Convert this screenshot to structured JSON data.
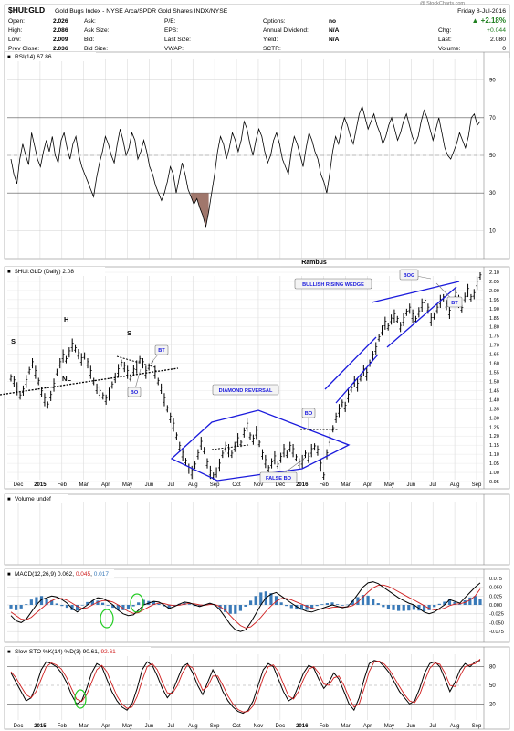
{
  "header": {
    "symbol": "$HUI:GLD",
    "description": "Gold Bugs Index - NYSE Arca/SPDR Gold Shares INDX/NYSE",
    "date": "Friday  8-Jul-2016",
    "change_pct": "▲ +2.18%",
    "chg_label": "Chg:",
    "chg_value": "+0.044",
    "last_label": "Last:",
    "last_value": "2.080",
    "volume_label": "Volume:",
    "volume_value": "0",
    "watermark": "@ StockCharts.com",
    "quote": [
      [
        "Open:",
        "2.026",
        "Ask:",
        "",
        "P/E:",
        "",
        "Options:",
        "no"
      ],
      [
        "High:",
        "2.086",
        "Ask Size:",
        "",
        "EPS:",
        "",
        "Annual Dividend:",
        "N/A"
      ],
      [
        "Low:",
        "2.009",
        "Bid:",
        "",
        "Last Size:",
        "",
        "Yield:",
        "N/A"
      ],
      [
        "Prev Close:",
        "2.036",
        "Bid Size:",
        "",
        "VWAP:",
        "",
        "SCTR:",
        ""
      ]
    ]
  },
  "colors": {
    "price": "#000000",
    "annotation": "#1a1adc",
    "rsi_fill": "#a0776c",
    "macd_signal": "#d02020",
    "macd_hist": "#3a7ab8",
    "sto_d": "#d02020",
    "green": "#22cc22",
    "grid": "#c8c8c8"
  },
  "chart_data": [
    {
      "type": "line",
      "title": "RSI(14) 67.86",
      "x_labels": [
        "Dec",
        "2015",
        "Feb",
        "Mar",
        "Apr",
        "May",
        "Jun",
        "Jul",
        "Aug",
        "Sep",
        "Oct",
        "Nov",
        "Dec",
        "2016",
        "Feb",
        "Mar",
        "Apr",
        "May",
        "Jun",
        "Jul",
        "Aug",
        "Sep"
      ],
      "y_ticks": [
        10,
        30,
        50,
        70,
        90
      ],
      "ylim": [
        0,
        100
      ],
      "reference_lines": [
        30,
        70
      ],
      "values": [
        48,
        40,
        35,
        48,
        56,
        50,
        45,
        62,
        55,
        48,
        44,
        52,
        58,
        52,
        60,
        50,
        46,
        58,
        62,
        54,
        48,
        56,
        60,
        50,
        44,
        40,
        36,
        32,
        28,
        38,
        46,
        52,
        60,
        56,
        50,
        46,
        56,
        64,
        58,
        50,
        54,
        62,
        58,
        48,
        52,
        58,
        52,
        44,
        40,
        34,
        30,
        26,
        30,
        36,
        44,
        40,
        30,
        38,
        46,
        40,
        32,
        28,
        24,
        27,
        22,
        18,
        12,
        20,
        30,
        40,
        52,
        60,
        56,
        48,
        54,
        62,
        58,
        52,
        58,
        68,
        64,
        56,
        50,
        58,
        64,
        60,
        52,
        46,
        50,
        58,
        62,
        56,
        48,
        44,
        40,
        52,
        60,
        56,
        50,
        44,
        54,
        62,
        58,
        52,
        48,
        40,
        36,
        30,
        40,
        52,
        60,
        56,
        64,
        70,
        66,
        60,
        56,
        64,
        72,
        76,
        70,
        64,
        68,
        72,
        66,
        62,
        56,
        60,
        66,
        70,
        64,
        58,
        62,
        68,
        72,
        66,
        60,
        56,
        60,
        68,
        74,
        70,
        64,
        58,
        64,
        70,
        62,
        54,
        50,
        48,
        52,
        56,
        62,
        58,
        54,
        60,
        70,
        72,
        66,
        68
      ]
    },
    {
      "type": "line",
      "title": "$HUI:GLD (Daily) 2.08",
      "credit": "Rambus",
      "x_labels": [
        "Dec",
        "2015",
        "Feb",
        "Mar",
        "Apr",
        "May",
        "Jun",
        "Jul",
        "Aug",
        "Sep",
        "Oct",
        "Nov",
        "Dec",
        "2016",
        "Feb",
        "Mar",
        "Apr",
        "May",
        "Jun",
        "Jul",
        "Aug",
        "Sep"
      ],
      "y_ticks": [
        "0.95",
        "1.00",
        "1.05",
        "1.10",
        "1.15",
        "1.20",
        "1.25",
        "1.30",
        "1.35",
        "1.40",
        "1.45",
        "1.50",
        "1.55",
        "1.60",
        "1.65",
        "1.70",
        "1.75",
        "1.80",
        "1.85",
        "1.90",
        "1.95",
        "2.00",
        "2.05",
        "2.10"
      ],
      "ylim": [
        0.95,
        2.1
      ],
      "values": [
        1.52,
        1.5,
        1.46,
        1.42,
        1.45,
        1.5,
        1.56,
        1.6,
        1.55,
        1.5,
        1.44,
        1.4,
        1.37,
        1.42,
        1.48,
        1.55,
        1.6,
        1.64,
        1.62,
        1.66,
        1.7,
        1.68,
        1.65,
        1.62,
        1.64,
        1.6,
        1.55,
        1.5,
        1.46,
        1.44,
        1.42,
        1.4,
        1.43,
        1.48,
        1.52,
        1.56,
        1.6,
        1.58,
        1.55,
        1.52,
        1.56,
        1.58,
        1.62,
        1.6,
        1.55,
        1.58,
        1.6,
        1.55,
        1.5,
        1.46,
        1.4,
        1.35,
        1.3,
        1.26,
        1.2,
        1.14,
        1.1,
        1.06,
        1.02,
        1.0,
        1.04,
        1.1,
        1.16,
        1.12,
        1.05,
        1.0,
        0.98,
        1.0,
        1.04,
        1.1,
        1.14,
        1.12,
        1.1,
        1.14,
        1.18,
        1.16,
        1.22,
        1.26,
        1.2,
        1.18,
        1.22,
        1.16,
        1.1,
        1.06,
        1.02,
        1.05,
        1.08,
        1.04,
        1.08,
        1.12,
        1.1,
        1.14,
        1.12,
        1.08,
        1.05,
        1.06,
        1.1,
        1.08,
        1.12,
        1.14,
        1.12,
        1.04,
        0.98,
        1.1,
        1.18,
        1.24,
        1.3,
        1.34,
        1.38,
        1.36,
        1.42,
        1.46,
        1.5,
        1.48,
        1.52,
        1.56,
        1.54,
        1.6,
        1.64,
        1.68,
        1.74,
        1.78,
        1.82,
        1.8,
        1.84,
        1.86,
        1.84,
        1.8,
        1.84,
        1.88,
        1.9,
        1.86,
        1.84,
        1.88,
        1.92,
        1.94,
        1.9,
        1.84,
        1.86,
        1.9,
        1.94,
        1.96,
        1.92,
        1.88,
        1.94,
        1.98,
        1.94,
        1.9,
        1.96,
        2.0,
        1.96,
        1.98,
        2.04,
        2.08
      ],
      "annotations": [
        {
          "text": "S"
        },
        {
          "text": "H"
        },
        {
          "text": "S"
        },
        {
          "text": "NL"
        },
        {
          "text": "BT"
        },
        {
          "text": "BO"
        },
        {
          "text": "DIAMOND REVERSAL"
        },
        {
          "text": "BO"
        },
        {
          "text": "FALSE BO"
        },
        {
          "text": "BULLISH RISING WEDGE"
        },
        {
          "text": "BOG"
        },
        {
          "text": "BT"
        }
      ]
    },
    {
      "type": "bar",
      "title": "Volume undef",
      "values": []
    },
    {
      "type": "line",
      "title": "MACD(12,26,9) 0.062, 0.045, 0.017",
      "title_parts": [
        "MACD(12,26,9) 0.062, ",
        "0.045",
        ", ",
        "0.017"
      ],
      "y_ticks": [
        "0.075",
        "0.050",
        "0.025",
        "0.000",
        "-0.025",
        "-0.050",
        "-0.075"
      ],
      "ylim": [
        -0.09,
        0.09
      ],
      "series": [
        {
          "values": [
            -0.03,
            -0.045,
            -0.05,
            -0.04,
            -0.02,
            0.0,
            0.015,
            0.02,
            0.025,
            0.022,
            0.015,
            0.005,
            -0.01,
            -0.02,
            -0.01,
            0.0,
            0.012,
            0.02,
            0.018,
            0.01,
            0.0,
            -0.015,
            -0.025,
            -0.03,
            -0.028,
            -0.015,
            0.0,
            0.005,
            0.01,
            0.008,
            0.0,
            -0.01,
            -0.005,
            0.002,
            0.008,
            0.006,
            0.0,
            -0.005,
            0.0,
            0.005,
            0.0,
            -0.015,
            -0.035,
            -0.055,
            -0.07,
            -0.075,
            -0.07,
            -0.05,
            -0.025,
            0.0,
            0.02,
            0.03,
            0.035,
            0.025,
            0.015,
            0.005,
            -0.005,
            -0.012,
            -0.018,
            -0.02,
            -0.015,
            -0.01,
            -0.005,
            0.0,
            -0.004,
            -0.008,
            -0.005,
            0.01,
            0.03,
            0.05,
            0.062,
            0.065,
            0.06,
            0.05,
            0.04,
            0.03,
            0.02,
            0.012,
            0.005,
            0.0,
            -0.01,
            -0.02,
            -0.025,
            -0.02,
            -0.01,
            0.0,
            0.015,
            0.01,
            0.005,
            0.02,
            0.035,
            0.05,
            0.062
          ]
        },
        {
          "values": [
            -0.02,
            -0.03,
            -0.04,
            -0.042,
            -0.035,
            -0.022,
            -0.01,
            0.002,
            0.012,
            0.018,
            0.018,
            0.013,
            0.005,
            -0.004,
            -0.01,
            -0.008,
            0.0,
            0.008,
            0.012,
            0.012,
            0.008,
            0.0,
            -0.01,
            -0.018,
            -0.024,
            -0.022,
            -0.014,
            -0.006,
            0.001,
            0.005,
            0.004,
            0.0,
            -0.002,
            -0.001,
            0.002,
            0.004,
            0.003,
            0.0,
            -0.001,
            0.001,
            0.001,
            -0.005,
            -0.015,
            -0.03,
            -0.045,
            -0.058,
            -0.065,
            -0.062,
            -0.05,
            -0.035,
            -0.018,
            -0.003,
            0.01,
            0.018,
            0.018,
            0.014,
            0.008,
            0.002,
            -0.004,
            -0.009,
            -0.012,
            -0.012,
            -0.01,
            -0.007,
            -0.006,
            -0.006,
            -0.006,
            -0.002,
            0.008,
            0.022,
            0.036,
            0.048,
            0.055,
            0.056,
            0.052,
            0.045,
            0.037,
            0.029,
            0.021,
            0.014,
            0.006,
            -0.002,
            -0.01,
            -0.014,
            -0.013,
            -0.009,
            -0.002,
            0.002,
            0.003,
            0.007,
            0.014,
            0.025,
            0.045
          ]
        }
      ]
    },
    {
      "type": "line",
      "title": "Slow STO %K(14) %D(3) 90.61, 92.61",
      "title_parts": [
        "Slow STO %K(14) %D(3) 90.61, ",
        "92.61"
      ],
      "y_ticks": [
        20,
        50,
        80
      ],
      "ylim": [
        0,
        100
      ],
      "reference_lines": [
        20,
        80
      ],
      "x_labels": [
        "Dec",
        "2015",
        "Feb",
        "Mar",
        "Apr",
        "May",
        "Jun",
        "Jul",
        "Aug",
        "Sep",
        "Oct",
        "Nov",
        "Dec",
        "2016",
        "Feb",
        "Mar",
        "Apr",
        "May",
        "Jun",
        "Jul",
        "Aug",
        "Sep"
      ],
      "series": [
        {
          "values": [
            70,
            55,
            40,
            25,
            30,
            50,
            75,
            88,
            85,
            80,
            70,
            55,
            35,
            20,
            25,
            45,
            70,
            85,
            80,
            60,
            40,
            25,
            15,
            10,
            20,
            45,
            75,
            88,
            82,
            65,
            45,
            30,
            40,
            60,
            80,
            85,
            70,
            50,
            35,
            55,
            75,
            60,
            40,
            25,
            15,
            8,
            5,
            10,
            25,
            50,
            75,
            85,
            80,
            60,
            40,
            25,
            30,
            50,
            70,
            82,
            78,
            60,
            45,
            55,
            70,
            60,
            40,
            20,
            10,
            30,
            60,
            85,
            90,
            88,
            80,
            70,
            55,
            40,
            30,
            20,
            25,
            45,
            70,
            85,
            88,
            80,
            60,
            40,
            55,
            75,
            85,
            80,
            88,
            90
          ]
        },
        {
          "values": [
            72,
            62,
            48,
            35,
            30,
            40,
            60,
            80,
            86,
            83,
            76,
            63,
            45,
            28,
            24,
            35,
            55,
            75,
            82,
            72,
            52,
            33,
            20,
            13,
            15,
            32,
            58,
            80,
            85,
            75,
            55,
            38,
            37,
            50,
            70,
            83,
            78,
            60,
            42,
            48,
            65,
            65,
            50,
            33,
            20,
            11,
            7,
            8,
            17,
            38,
            62,
            80,
            83,
            72,
            52,
            33,
            28,
            40,
            60,
            76,
            80,
            70,
            52,
            50,
            62,
            65,
            50,
            30,
            15,
            20,
            45,
            72,
            88,
            89,
            84,
            75,
            62,
            48,
            35,
            25,
            22,
            35,
            57,
            77,
            86,
            84,
            70,
            50,
            48,
            65,
            80,
            83,
            85,
            92
          ]
        }
      ]
    }
  ]
}
